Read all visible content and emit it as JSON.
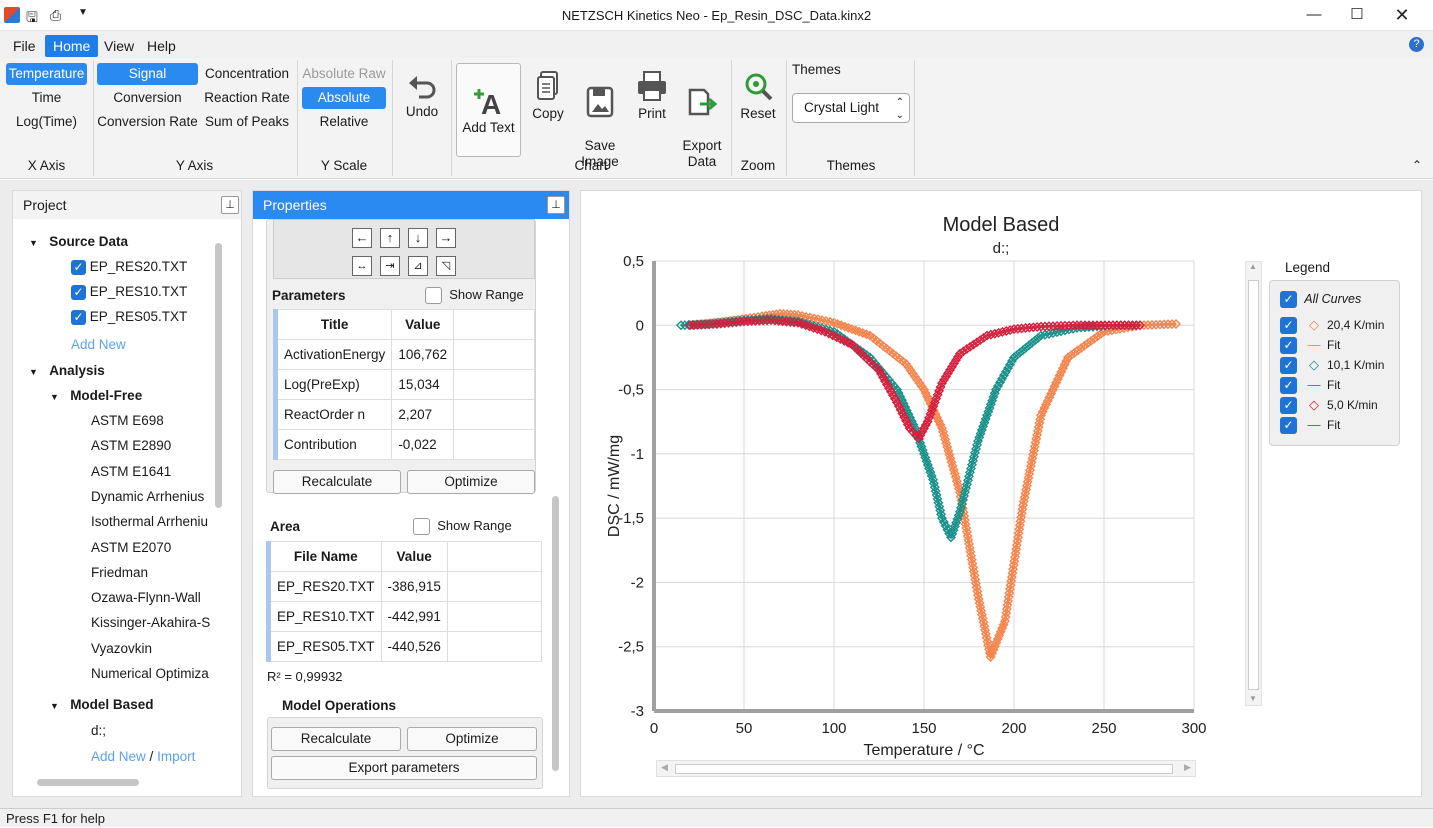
{
  "window": {
    "title": "NETZSCH Kinetics Neo - Ep_Resin_DSC_Data.kinx2",
    "min_icon": "minimize-icon",
    "max_icon": "maximize-icon",
    "close_icon": "close-icon"
  },
  "menu": [
    "File",
    "Home",
    "View",
    "Help"
  ],
  "ribbon": {
    "xaxis": {
      "items": [
        "Temperature",
        "Time",
        "Log(Time)"
      ],
      "label": "X Axis"
    },
    "yaxis": {
      "col1": [
        "Signal",
        "Conversion",
        "Conversion Rate"
      ],
      "col2": [
        "Concentration",
        "Reaction Rate",
        "Sum of Peaks"
      ],
      "label": "Y Axis"
    },
    "yscale": {
      "items": [
        "Absolute Raw",
        "Absolute",
        "Relative"
      ],
      "label": "Y Scale"
    },
    "undo": "Undo",
    "chart": {
      "add_text": "Add Text",
      "copy": "Copy",
      "save_image": "Save\nImage",
      "print": "Print",
      "export_data": "Export\nData",
      "label": "Chart"
    },
    "zoom": {
      "reset": "Reset",
      "label": "Zoom"
    },
    "themes": {
      "title": "Themes",
      "value": "Crystal Light",
      "label": "Themes"
    }
  },
  "project": {
    "title": "Project",
    "source_data": "Source Data",
    "files": [
      "EP_RES20.TXT",
      "EP_RES10.TXT",
      "EP_RES05.TXT"
    ],
    "add_new": "Add New",
    "analysis": "Analysis",
    "model_free": "Model-Free",
    "methods": [
      "ASTM E698",
      "ASTM E2890",
      "ASTM E1641",
      "Dynamic Arrhenius",
      "Isothermal Arrheniu",
      "ASTM E2070",
      "Friedman",
      "Ozawa-Flynn-Wall",
      "Kissinger-Akahira-S",
      "Vyazovkin",
      "Numerical Optimiza"
    ],
    "model_based": "Model Based",
    "model_item": "d:;",
    "add_new2": "Add New",
    "slash": "/",
    "import": "Import"
  },
  "properties": {
    "title": "Properties",
    "parameters": "Parameters",
    "show_range": "Show Range",
    "param_headers": [
      "Title",
      "Value"
    ],
    "params": [
      [
        "ActivationEnergy",
        "106,762"
      ],
      [
        "Log(PreExp)",
        "15,034"
      ],
      [
        "ReactOrder n",
        "2,207"
      ],
      [
        "Contribution",
        "-0,022"
      ]
    ],
    "recalculate": "Recalculate",
    "optimize": "Optimize",
    "area": "Area",
    "area_headers": [
      "File Name",
      "Value"
    ],
    "areas": [
      [
        "EP_RES20.TXT",
        "-386,915"
      ],
      [
        "EP_RES10.TXT",
        "-442,991"
      ],
      [
        "EP_RES05.TXT",
        "-440,526"
      ]
    ],
    "r2": "R² =  0,99932",
    "model_operations": "Model Operations",
    "export_parameters": "Export parameters"
  },
  "legend": {
    "title": "Legend",
    "all": "All Curves",
    "items": [
      "20,4 K/min",
      "Fit",
      "10,1 K/min",
      "Fit",
      "5,0 K/min",
      "Fit"
    ]
  },
  "status": "Press F1 for help",
  "chart_data": {
    "type": "scatter",
    "title": "Model Based",
    "subtitle": "d:;",
    "xlabel": "Temperature / °C",
    "ylabel": "DSC / mW/mg",
    "xlim": [
      0,
      300
    ],
    "ylim": [
      -3,
      0.5
    ],
    "xticks": [
      "0",
      "50",
      "100",
      "150",
      "200",
      "250",
      "300"
    ],
    "yticks": [
      "0,5",
      "0",
      "-0,5",
      "-1",
      "-1,5",
      "-2",
      "-2,5",
      "-3"
    ],
    "grid": true,
    "legend": "right",
    "series": [
      {
        "name": "20,4 K/min",
        "color": "#f5844c",
        "marker": "diamond",
        "x": [
          20,
          40,
          60,
          70,
          80,
          100,
          120,
          140,
          150,
          160,
          170,
          180,
          187,
          195,
          205,
          215,
          230,
          250,
          270,
          290
        ],
        "y": [
          0,
          0.03,
          0.07,
          0.09,
          0.08,
          0.02,
          -0.08,
          -0.3,
          -0.5,
          -0.8,
          -1.3,
          -2.1,
          -2.58,
          -2.3,
          -1.4,
          -0.7,
          -0.25,
          -0.05,
          0,
          0.01
        ]
      },
      {
        "name": "10,1 K/min",
        "color": "#17908a",
        "marker": "diamond",
        "x": [
          15,
          30,
          50,
          65,
          80,
          100,
          120,
          135,
          145,
          155,
          160,
          165,
          170,
          180,
          190,
          200,
          215,
          235,
          255,
          268
        ],
        "y": [
          0,
          0.01,
          0.04,
          0.05,
          0.03,
          -0.05,
          -0.25,
          -0.5,
          -0.8,
          -1.2,
          -1.5,
          -1.65,
          -1.45,
          -0.9,
          -0.5,
          -0.25,
          -0.08,
          -0.02,
          0,
          0
        ]
      },
      {
        "name": "5,0 K/min",
        "color": "#d61e3c",
        "marker": "diamond",
        "x": [
          20,
          35,
          50,
          65,
          80,
          95,
          110,
          125,
          135,
          142,
          147,
          152,
          160,
          170,
          185,
          200,
          215,
          235,
          255,
          270
        ],
        "y": [
          0,
          0.01,
          0.03,
          0.04,
          0.02,
          -0.05,
          -0.15,
          -0.35,
          -0.6,
          -0.8,
          -0.88,
          -0.75,
          -0.45,
          -0.22,
          -0.08,
          -0.03,
          -0.01,
          0,
          0,
          0
        ]
      }
    ]
  }
}
